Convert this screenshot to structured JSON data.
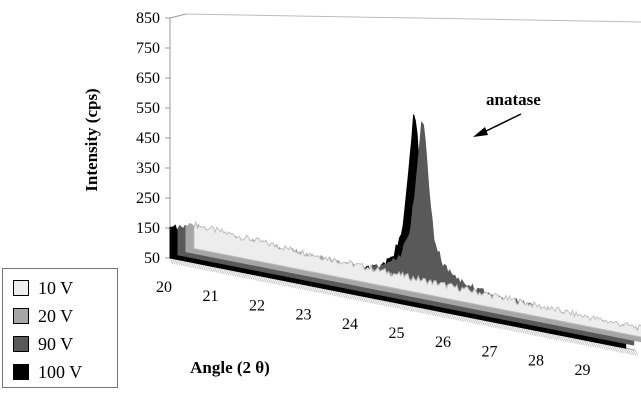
{
  "chart_data": {
    "type": "area",
    "title": "",
    "xlabel": "Angle (2 θ)",
    "ylabel": "Intensity (cps)",
    "xlim": [
      20,
      30
    ],
    "ylim": [
      50,
      850
    ],
    "x_ticks": [
      "20",
      "21",
      "22",
      "23",
      "24",
      "25",
      "26",
      "27",
      "28",
      "29"
    ],
    "y_ticks": [
      "850",
      "750",
      "650",
      "550",
      "450",
      "350",
      "250",
      "150",
      "50"
    ],
    "annotation": "anatase",
    "series": [
      {
        "name": "10 V",
        "color": "#ededed",
        "x": [
          20,
          21,
          22,
          23,
          24,
          25,
          26,
          27,
          28,
          29,
          29.8
        ],
        "y": [
          130,
          120,
          112,
          105,
          100,
          95,
          92,
          88,
          83,
          80,
          78
        ]
      },
      {
        "name": "20 V",
        "color": "#a6a6a6",
        "x": [
          20,
          21,
          22,
          23,
          24,
          25,
          26,
          27,
          28,
          29,
          29.8
        ],
        "y": [
          140,
          130,
          122,
          115,
          110,
          105,
          100,
          95,
          90,
          86,
          84
        ]
      },
      {
        "name": "90 V",
        "color": "#595959",
        "x": [
          20,
          21,
          22,
          23,
          24,
          24.5,
          24.8,
          25.0,
          25.1,
          25.2,
          25.25,
          25.3,
          25.4,
          25.5,
          25.7,
          26.0,
          26.5,
          27,
          28,
          29,
          29.8
        ],
        "y": [
          148,
          140,
          132,
          126,
          125,
          150,
          195,
          290,
          420,
          580,
          680,
          620,
          430,
          270,
          190,
          150,
          128,
          120,
          108,
          96,
          92
        ]
      },
      {
        "name": "100 V",
        "color": "#000000",
        "x": [
          20,
          21,
          22,
          23,
          24,
          24.5,
          24.8,
          25.0,
          25.1,
          25.2,
          25.25,
          25.3,
          25.4,
          25.5,
          25.7,
          26.0,
          26.5,
          27,
          28,
          29,
          29.8
        ],
        "y": [
          155,
          148,
          140,
          133,
          130,
          155,
          200,
          300,
          440,
          610,
          700,
          645,
          450,
          280,
          195,
          155,
          132,
          124,
          112,
          100,
          95
        ]
      }
    ]
  }
}
